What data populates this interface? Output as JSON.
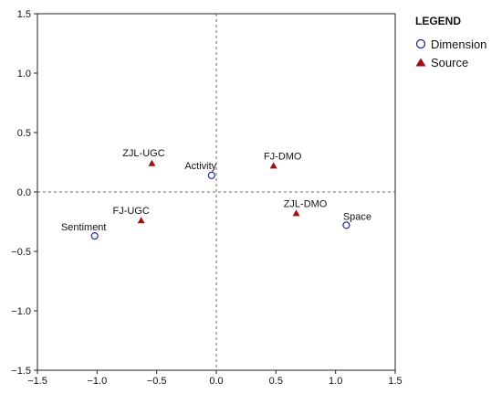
{
  "chart_data": {
    "type": "scatter",
    "xlim": [
      -1.5,
      1.5
    ],
    "ylim": [
      -1.5,
      1.5
    ],
    "x_ticks": [
      -1.5,
      -1.0,
      -0.5,
      0.0,
      0.5,
      1.0,
      1.5
    ],
    "y_ticks": [
      -1.5,
      -1.0,
      -0.5,
      0.0,
      0.5,
      1.0,
      1.5
    ],
    "x_tick_labels": [
      "−1.5",
      "−1.0",
      "−0.5",
      "0.0",
      "0.5",
      "1.0",
      "1.5"
    ],
    "y_tick_labels": [
      "−1.5",
      "−1.0",
      "−0.5",
      "0.0",
      "0.5",
      "1.0",
      "1.5"
    ],
    "reference_lines": {
      "x": 0,
      "y": 0,
      "style": "dashed"
    },
    "legend": {
      "title": "LEGEND",
      "placement": "right"
    },
    "series": [
      {
        "name": "Dimension",
        "marker": "circle",
        "color": "#1f2f8f",
        "points": [
          {
            "label": "Activity",
            "x": -0.04,
            "y": 0.14
          },
          {
            "label": "Sentiment",
            "x": -1.02,
            "y": -0.37
          },
          {
            "label": "Space",
            "x": 1.09,
            "y": -0.28
          }
        ]
      },
      {
        "name": "Source",
        "marker": "triangle",
        "color": "#a01010",
        "points": [
          {
            "label": "ZJL-UGC",
            "x": -0.54,
            "y": 0.24
          },
          {
            "label": "FJ-DMO",
            "x": 0.48,
            "y": 0.22
          },
          {
            "label": "FJ-UGC",
            "x": -0.63,
            "y": -0.24
          },
          {
            "label": "ZJL-DMO",
            "x": 0.67,
            "y": -0.18
          }
        ]
      }
    ]
  }
}
